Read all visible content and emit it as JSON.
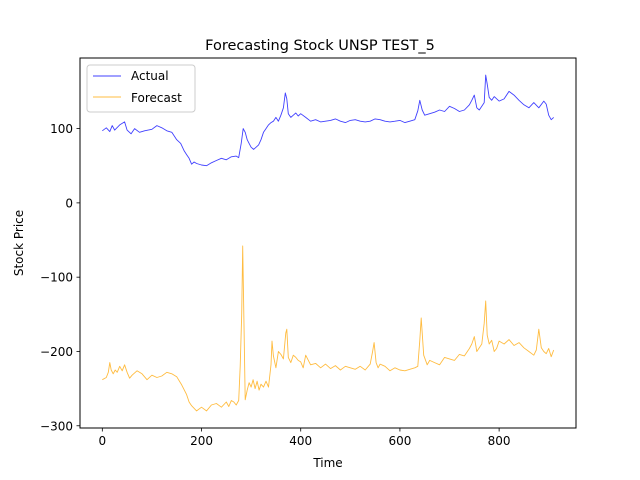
{
  "chart_data": {
    "type": "line",
    "title": "Forecasting Stock UNSP TEST_5",
    "xlabel": "Time",
    "ylabel": "Stock Price",
    "xlim": [
      -45,
      955
    ],
    "ylim": [
      -303,
      195
    ],
    "xticks": [
      0,
      200,
      400,
      600,
      800
    ],
    "yticks": [
      100,
      0,
      -100,
      -200,
      -300
    ],
    "grid": false,
    "legend_position": "top-left",
    "series": [
      {
        "name": "Actual",
        "color": "#0000ff",
        "opacity": 0.75,
        "x": [
          0,
          8,
          15,
          20,
          25,
          35,
          45,
          50,
          58,
          65,
          75,
          85,
          100,
          110,
          120,
          130,
          140,
          150,
          158,
          165,
          170,
          175,
          180,
          185,
          190,
          200,
          210,
          220,
          230,
          240,
          250,
          260,
          270,
          275,
          280,
          284,
          288,
          292,
          296,
          300,
          305,
          310,
          315,
          320,
          325,
          330,
          335,
          340,
          345,
          350,
          355,
          360,
          365,
          369,
          372,
          375,
          380,
          385,
          390,
          395,
          400,
          410,
          420,
          430,
          440,
          450,
          460,
          470,
          480,
          490,
          500,
          510,
          520,
          530,
          540,
          550,
          560,
          570,
          580,
          590,
          600,
          610,
          620,
          630,
          636,
          640,
          645,
          650,
          660,
          670,
          680,
          690,
          700,
          710,
          720,
          730,
          740,
          745,
          750,
          755,
          760,
          765,
          770,
          773,
          776,
          780,
          785,
          790,
          800,
          810,
          820,
          830,
          840,
          850,
          860,
          870,
          880,
          890,
          895,
          900,
          905,
          910
        ],
        "y": [
          97,
          101,
          96,
          104,
          98,
          105,
          109,
          98,
          93,
          100,
          95,
          97,
          99,
          104,
          101,
          97,
          95,
          85,
          80,
          70,
          65,
          60,
          52,
          55,
          53,
          51,
          50,
          54,
          57,
          60,
          58,
          62,
          63,
          61,
          80,
          100,
          95,
          85,
          80,
          75,
          72,
          75,
          78,
          85,
          95,
          100,
          105,
          108,
          110,
          115,
          110,
          118,
          128,
          148,
          140,
          120,
          115,
          118,
          121,
          117,
          120,
          115,
          110,
          112,
          109,
          110,
          111,
          113,
          110,
          108,
          111,
          112,
          110,
          109,
          110,
          113,
          112,
          110,
          109,
          110,
          111,
          108,
          110,
          112,
          124,
          138,
          125,
          118,
          120,
          122,
          125,
          123,
          130,
          127,
          123,
          125,
          132,
          138,
          145,
          128,
          125,
          130,
          135,
          172,
          160,
          142,
          138,
          143,
          137,
          140,
          150,
          145,
          138,
          132,
          128,
          135,
          128,
          137,
          133,
          118,
          112,
          115
        ]
      },
      {
        "name": "Forecast",
        "color": "#ffa500",
        "opacity": 0.75,
        "x": [
          0,
          8,
          12,
          15,
          18,
          22,
          26,
          30,
          35,
          40,
          45,
          50,
          55,
          60,
          70,
          80,
          90,
          100,
          110,
          120,
          130,
          140,
          150,
          160,
          170,
          175,
          180,
          190,
          200,
          210,
          220,
          230,
          240,
          250,
          255,
          260,
          265,
          270,
          275,
          278,
          281,
          283,
          285,
          288,
          292,
          296,
          300,
          304,
          308,
          312,
          316,
          320,
          325,
          330,
          335,
          340,
          342,
          345,
          350,
          355,
          360,
          365,
          370,
          372,
          375,
          380,
          385,
          390,
          395,
          400,
          405,
          410,
          420,
          430,
          440,
          450,
          460,
          470,
          480,
          490,
          500,
          510,
          520,
          530,
          540,
          545,
          548,
          552,
          556,
          560,
          570,
          580,
          590,
          600,
          610,
          620,
          630,
          636,
          640,
          643,
          648,
          655,
          660,
          670,
          680,
          690,
          700,
          710,
          720,
          730,
          740,
          745,
          750,
          755,
          760,
          765,
          770,
          773,
          776,
          780,
          785,
          790,
          795,
          800,
          810,
          820,
          830,
          840,
          850,
          860,
          870,
          875,
          880,
          885,
          890,
          895,
          900,
          905,
          910
        ],
        "y": [
          -238,
          -235,
          -228,
          -215,
          -225,
          -230,
          -225,
          -228,
          -220,
          -226,
          -218,
          -228,
          -236,
          -232,
          -226,
          -230,
          -238,
          -232,
          -235,
          -233,
          -228,
          -230,
          -234,
          -245,
          -258,
          -268,
          -273,
          -280,
          -275,
          -280,
          -272,
          -270,
          -275,
          -268,
          -274,
          -266,
          -268,
          -272,
          -266,
          -220,
          -150,
          -58,
          -140,
          -265,
          -252,
          -242,
          -248,
          -238,
          -250,
          -240,
          -252,
          -244,
          -248,
          -240,
          -248,
          -218,
          -186,
          -206,
          -222,
          -200,
          -204,
          -210,
          -175,
          -170,
          -208,
          -215,
          -205,
          -208,
          -212,
          -214,
          -222,
          -205,
          -218,
          -216,
          -222,
          -217,
          -223,
          -219,
          -225,
          -220,
          -222,
          -224,
          -220,
          -225,
          -217,
          -200,
          -188,
          -215,
          -222,
          -217,
          -220,
          -226,
          -222,
          -225,
          -226,
          -224,
          -222,
          -220,
          -185,
          -155,
          -205,
          -218,
          -212,
          -215,
          -218,
          -208,
          -210,
          -212,
          -204,
          -206,
          -196,
          -190,
          -180,
          -200,
          -195,
          -190,
          -162,
          -132,
          -178,
          -190,
          -185,
          -200,
          -196,
          -186,
          -190,
          -184,
          -192,
          -188,
          -195,
          -200,
          -205,
          -198,
          -170,
          -195,
          -200,
          -203,
          -196,
          -207,
          -198
        ]
      }
    ]
  }
}
